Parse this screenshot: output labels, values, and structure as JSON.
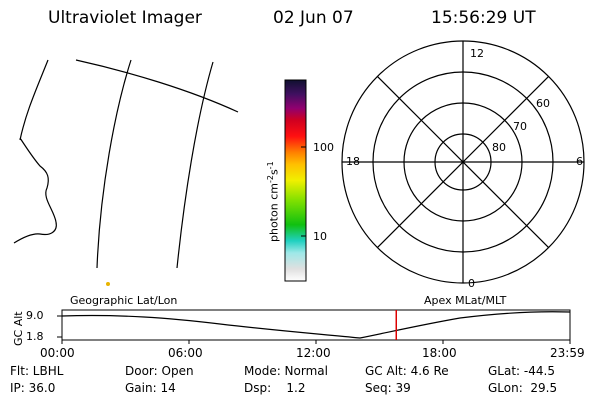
{
  "header": {
    "title": "Ultraviolet Imager",
    "date": "02 Jun 07",
    "time": "15:56:29 UT"
  },
  "colorbar": {
    "label": "photon cm-2s-1",
    "ticks": [
      "100",
      "10"
    ]
  },
  "polar": {
    "mlt_labels": {
      "top": "12",
      "left": "18",
      "right": "6",
      "bottom": "0"
    },
    "lat_labels": [
      "60",
      "70",
      "80"
    ]
  },
  "map_labels": {
    "left": "Geographic Lat/Lon",
    "right": "Apex MLat/MLT"
  },
  "alt_plot": {
    "axis_label": "GC Alt",
    "y_ticks": [
      "9.0",
      "1.8"
    ],
    "x_ticks": [
      "00:00",
      "06:00",
      "12:00",
      "18:00",
      "23:59"
    ],
    "current_fraction": 0.658,
    "marker_color": "#dd0000"
  },
  "footer": {
    "flt": "Flt: LBHL",
    "door": "Door: Open",
    "mode": "Mode: Normal",
    "gcalt": "GC Alt: 4.6 Re",
    "glat": "GLat: -44.5",
    "ip": "IP: 36.0",
    "gain": "Gain: 14",
    "dsp": "Dsp:    1.2",
    "seq": "Seq: 39",
    "glon": "GLon:  29.5"
  }
}
